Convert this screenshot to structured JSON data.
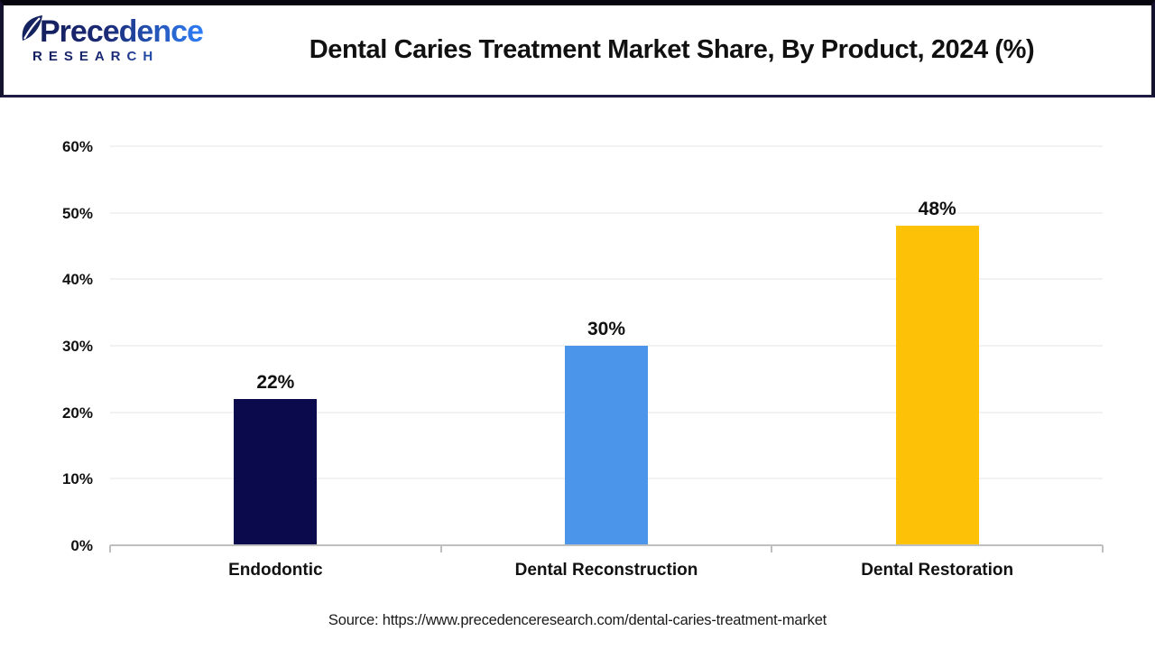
{
  "header": {
    "logo": {
      "brand": "Precedence",
      "sub": "RESEARCH"
    },
    "title": "Dental Caries Treatment Market Share, By Product, 2024 (%)"
  },
  "chart_data": {
    "type": "bar",
    "title": "Dental Caries Treatment Market Share, By Product, 2024 (%)",
    "categories": [
      "Endodontic",
      "Dental Reconstruction",
      "Dental Restoration"
    ],
    "values": [
      22,
      30,
      48
    ],
    "value_labels": [
      "22%",
      "30%",
      "48%"
    ],
    "bar_colors": [
      "#0A0A4C",
      "#4B96EA",
      "#FDC107"
    ],
    "xlabel": "",
    "ylabel": "",
    "ylim": [
      0,
      60
    ],
    "ytick_step": 10,
    "ytick_labels": [
      "0%",
      "10%",
      "20%",
      "30%",
      "40%",
      "50%",
      "60%"
    ],
    "grid": true,
    "legend_position": "none"
  },
  "footer": {
    "source": "Source: https://www.precedenceresearch.com/dental-caries-treatment-market"
  },
  "colors": {
    "grid_line": "#F2F2F2",
    "axis_line": "#BFBFBF",
    "text": "#111111",
    "logo_navy": "#14235F",
    "logo_blue": "#2F7FF7"
  }
}
